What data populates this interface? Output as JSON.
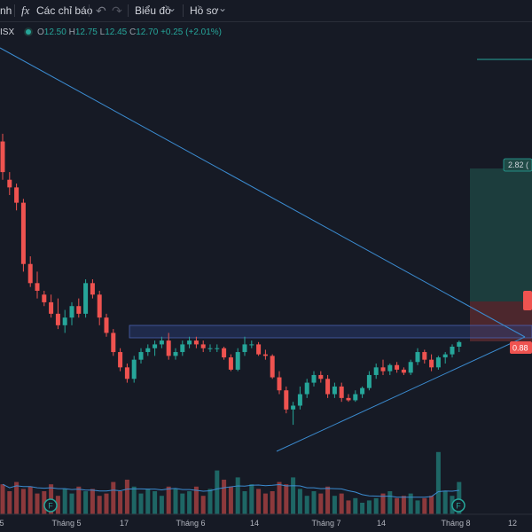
{
  "toolbar": {
    "partial_label": "nh",
    "fx_icon_text": "fx",
    "indicators_label": "Các chỉ báo",
    "undo_icon": "↶",
    "redo_icon": "↷",
    "chart_label": "Biểu đồ",
    "profile_label": "Hồ sơ",
    "chevron": "⌄"
  },
  "legend": {
    "symbol_partial": "ISX",
    "o_key": "O",
    "o_val": "12.50",
    "h_key": "H",
    "h_val": "12.75",
    "l_key": "L",
    "l_val": "12.45",
    "c_key": "C",
    "c_val": "12.70",
    "change": "+0.25 (+2.01%)"
  },
  "colors": {
    "up": "#26a69a",
    "down": "#ef5350",
    "background": "#161a25",
    "trendline": "#3b8bd0",
    "zone": "#2a3f7a"
  },
  "x_axis": {
    "labels": [
      "5",
      "Tháng 5",
      "17",
      "Tháng 6",
      "14",
      "Tháng 7",
      "14",
      "Tháng 8",
      "12"
    ]
  },
  "price_tags": {
    "target": "2.82 (",
    "stop": "0.88"
  },
  "events": {
    "marker_1": "F",
    "marker_2": "F"
  },
  "chart_data": {
    "type": "candlestick",
    "ohlc": [
      [
        14.6,
        14.7,
        14.1,
        14.2
      ],
      [
        14.1,
        14.2,
        13.9,
        14.0
      ],
      [
        14.0,
        14.05,
        13.7,
        13.8
      ],
      [
        13.8,
        13.85,
        12.9,
        13.0
      ],
      [
        13.0,
        13.1,
        12.7,
        12.75
      ],
      [
        12.75,
        12.9,
        12.55,
        12.65
      ],
      [
        12.6,
        12.65,
        12.45,
        12.5
      ],
      [
        12.5,
        12.6,
        12.3,
        12.35
      ],
      [
        12.35,
        12.55,
        12.15,
        12.2
      ],
      [
        12.2,
        12.4,
        12.1,
        12.3
      ],
      [
        12.3,
        12.5,
        12.2,
        12.45
      ],
      [
        12.45,
        12.55,
        12.3,
        12.35
      ],
      [
        12.35,
        12.8,
        12.3,
        12.75
      ],
      [
        12.75,
        12.8,
        12.55,
        12.6
      ],
      [
        12.6,
        12.65,
        12.2,
        12.3
      ],
      [
        12.3,
        12.35,
        12.05,
        12.1
      ],
      [
        12.1,
        12.15,
        11.8,
        11.85
      ],
      [
        11.85,
        11.9,
        11.6,
        11.65
      ],
      [
        11.65,
        11.7,
        11.45,
        11.5
      ],
      [
        11.5,
        11.8,
        11.45,
        11.75
      ],
      [
        11.75,
        11.9,
        11.7,
        11.85
      ],
      [
        11.85,
        11.95,
        11.8,
        11.9
      ],
      [
        11.9,
        12.0,
        11.8,
        11.95
      ],
      [
        11.95,
        12.05,
        11.9,
        12.0
      ],
      [
        12.0,
        12.1,
        11.75,
        11.8
      ],
      [
        11.8,
        11.9,
        11.75,
        11.85
      ],
      [
        11.85,
        12.0,
        11.8,
        11.95
      ],
      [
        11.95,
        12.05,
        11.9,
        12.0
      ],
      [
        12.0,
        12.05,
        11.9,
        11.95
      ],
      [
        11.95,
        12.0,
        11.85,
        11.9
      ],
      [
        11.9,
        11.95,
        11.85,
        11.9
      ],
      [
        11.9,
        11.95,
        11.85,
        11.9
      ],
      [
        11.9,
        11.92,
        11.75,
        11.78
      ],
      [
        11.78,
        11.82,
        11.6,
        11.62
      ],
      [
        11.62,
        11.9,
        11.6,
        11.85
      ],
      [
        11.85,
        12.05,
        11.8,
        11.95
      ],
      [
        11.95,
        12.0,
        11.9,
        11.95
      ],
      [
        11.95,
        11.98,
        11.8,
        11.82
      ],
      [
        11.82,
        11.88,
        11.75,
        11.8
      ],
      [
        11.8,
        11.82,
        11.5,
        11.52
      ],
      [
        11.52,
        11.6,
        11.3,
        11.35
      ],
      [
        11.35,
        11.4,
        11.05,
        11.1
      ],
      [
        11.1,
        11.2,
        10.9,
        11.15
      ],
      [
        11.15,
        11.4,
        11.1,
        11.3
      ],
      [
        11.3,
        11.5,
        11.25,
        11.45
      ],
      [
        11.45,
        11.6,
        11.4,
        11.55
      ],
      [
        11.55,
        11.6,
        11.45,
        11.5
      ],
      [
        11.5,
        11.55,
        11.25,
        11.3
      ],
      [
        11.3,
        11.45,
        11.25,
        11.4
      ],
      [
        11.4,
        11.45,
        11.2,
        11.25
      ],
      [
        11.25,
        11.3,
        11.2,
        11.22
      ],
      [
        11.22,
        11.35,
        11.2,
        11.3
      ],
      [
        11.3,
        11.4,
        11.25,
        11.38
      ],
      [
        11.38,
        11.6,
        11.35,
        11.55
      ],
      [
        11.55,
        11.7,
        11.5,
        11.65
      ],
      [
        11.65,
        11.75,
        11.55,
        11.6
      ],
      [
        11.6,
        11.7,
        11.55,
        11.68
      ],
      [
        11.68,
        11.72,
        11.58,
        11.62
      ],
      [
        11.62,
        11.65,
        11.55,
        11.58
      ],
      [
        11.58,
        11.75,
        11.55,
        11.72
      ],
      [
        11.72,
        11.9,
        11.68,
        11.85
      ],
      [
        11.85,
        11.88,
        11.7,
        11.75
      ],
      [
        11.75,
        11.82,
        11.6,
        11.65
      ],
      [
        11.65,
        11.8,
        11.62,
        11.78
      ],
      [
        11.78,
        11.85,
        11.7,
        11.82
      ],
      [
        11.82,
        11.95,
        11.78,
        11.92
      ],
      [
        11.92,
        12.0,
        11.85,
        11.98
      ]
    ],
    "volume": [
      1.3,
      1.0,
      1.4,
      1.1,
      1.2,
      0.9,
      1.0,
      1.3,
      0.8,
      1.1,
      0.9,
      1.2,
      1.0,
      1.1,
      0.8,
      0.9,
      1.4,
      1.0,
      1.5,
      1.2,
      0.9,
      1.1,
      1.0,
      0.8,
      1.2,
      1.1,
      0.9,
      1.0,
      1.2,
      0.8,
      1.1,
      1.9,
      1.5,
      1.2,
      1.6,
      1.0,
      1.3,
      1.1,
      0.9,
      1.0,
      1.4,
      1.3,
      1.6,
      1.1,
      0.8,
      1.0,
      0.9,
      1.2,
      0.8,
      0.9,
      0.6,
      0.7,
      0.5,
      0.6,
      0.7,
      0.9,
      1.0,
      0.7,
      0.8,
      0.9,
      0.6,
      0.7,
      0.8,
      2.7,
      1.0,
      0.8,
      1.4
    ],
    "resistance_zone": [
      11.88,
      11.98
    ],
    "position_entry": 12.0,
    "position_target": 14.82,
    "position_stop": 11.12
  }
}
